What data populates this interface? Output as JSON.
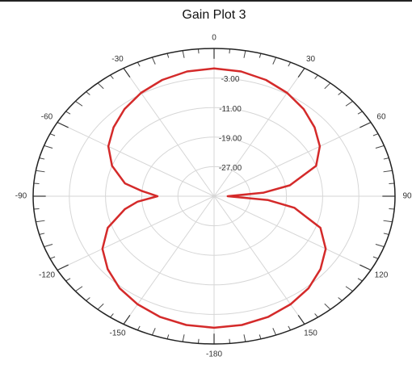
{
  "chart_data": {
    "type": "polar",
    "title": "Gain Plot 3",
    "theta": [
      -180,
      -170,
      -160,
      -150,
      -140,
      -130,
      -120,
      -110,
      -100,
      -95,
      -90,
      -85,
      -80,
      -70,
      -60,
      -50,
      -40,
      -30,
      -20,
      -10,
      0,
      10,
      20,
      30,
      40,
      50,
      60,
      70,
      80,
      85,
      90,
      95,
      100,
      110,
      120,
      130,
      140,
      150,
      160,
      170
    ],
    "values": [
      0.6,
      0.4,
      -0.2,
      -1.2,
      -2.5,
      -4.3,
      -6.5,
      -10,
      -15,
      -18,
      -22.5,
      -19,
      -15,
      -11,
      -8,
      -6,
      -4.2,
      -2.7,
      -1.5,
      -0.7,
      -0.4,
      -0.7,
      -1.5,
      -2.7,
      -4.2,
      -6,
      -8,
      -11,
      -18,
      -24,
      -32,
      -23,
      -17,
      -10,
      -6.5,
      -4.3,
      -2.5,
      -1.2,
      -0.2,
      0.4
    ],
    "color": "#d42a2a",
    "rlim": [
      -35,
      5
    ],
    "rticks": [
      {
        "value": -27,
        "label": "-27.00"
      },
      {
        "value": -19,
        "label": "-19.00"
      },
      {
        "value": -11,
        "label": "-11.00"
      },
      {
        "value": -3,
        "label": "-3.00"
      }
    ],
    "angle_ticks": [
      0,
      30,
      60,
      90,
      120,
      150,
      -180,
      -150,
      -120,
      -90,
      -60,
      -30
    ],
    "grid": true
  }
}
